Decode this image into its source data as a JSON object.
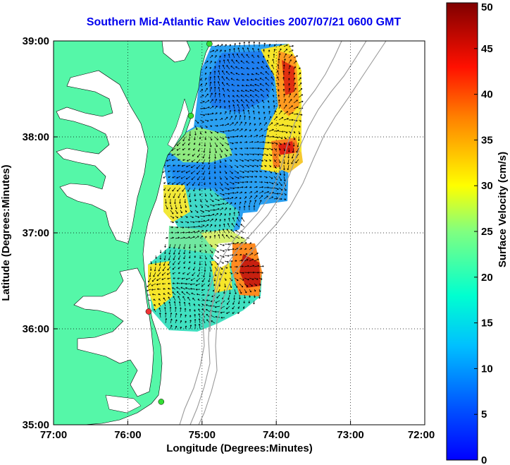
{
  "title": "Southern Mid-Atlantic Raw Velocities 2007/07/21 0600 GMT",
  "map": {
    "xlabel": "Longitude (Degrees:Minutes)",
    "ylabel": "Latitude (Degrees:Minutes)",
    "x_ticks": [
      "77:00",
      "76:00",
      "75:00",
      "74:00",
      "73:00",
      "72:00"
    ],
    "y_ticks": [
      "39:00",
      "38:00",
      "37:00",
      "36:00",
      "35:00"
    ],
    "lon_range_west": [
      77,
      72
    ],
    "lat_range": [
      35,
      39
    ],
    "grid": "dotted",
    "land_color": "#55f7a8",
    "water_color": "#ffffff",
    "bathymetry_color": "#999999"
  },
  "colorbar": {
    "label": "Surface Velocity (cm/s)",
    "ticks": [
      "0",
      "5",
      "10",
      "15",
      "20",
      "25",
      "30",
      "35",
      "40",
      "45",
      "50"
    ],
    "range": [
      0,
      50
    ],
    "colormap": "jet"
  },
  "stations": [
    {
      "color": "#33dd33",
      "lon": 74.9,
      "lat": 38.97
    },
    {
      "color": "#33dd33",
      "lon": 75.15,
      "lat": 38.22
    },
    {
      "color": "#ee3333",
      "lon": 75.72,
      "lat": 36.18
    },
    {
      "color": "#33dd33",
      "lon": 75.55,
      "lat": 35.24
    }
  ]
}
